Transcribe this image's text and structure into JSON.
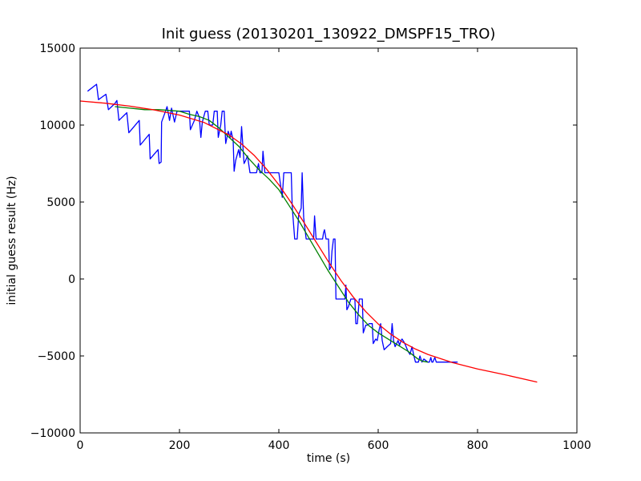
{
  "chart_data": {
    "type": "line",
    "title": "Init guess (20130201_130922_DMSPF15_TRO)",
    "xlabel": "time (s)",
    "ylabel": "initial guess result (Hz)",
    "xlim": [
      0,
      1000
    ],
    "ylim": [
      -10000,
      15000
    ],
    "xticks": [
      0,
      200,
      400,
      600,
      800,
      1000
    ],
    "yticks": [
      -10000,
      -5000,
      0,
      5000,
      10000,
      15000
    ],
    "grid": false,
    "series": [
      {
        "color": "#0000ff",
        "points": [
          [
            15,
            12200
          ],
          [
            33,
            12650
          ],
          [
            37,
            11650
          ],
          [
            52,
            12000
          ],
          [
            57,
            11000
          ],
          [
            70,
            11400
          ],
          [
            74,
            11600
          ],
          [
            78,
            10300
          ],
          [
            94,
            10800
          ],
          [
            98,
            9500
          ],
          [
            119,
            10300
          ],
          [
            121,
            8700
          ],
          [
            139,
            9400
          ],
          [
            141,
            7800
          ],
          [
            157,
            8400
          ],
          [
            159,
            7500
          ],
          [
            163,
            7600
          ],
          [
            164,
            10200
          ],
          [
            172,
            10900
          ],
          [
            175,
            11200
          ],
          [
            180,
            10300
          ],
          [
            184,
            11100
          ],
          [
            190,
            10200
          ],
          [
            195,
            10900
          ],
          [
            220,
            10900
          ],
          [
            222,
            9700
          ],
          [
            230,
            10300
          ],
          [
            235,
            10900
          ],
          [
            240,
            10500
          ],
          [
            243,
            9200
          ],
          [
            246,
            10200
          ],
          [
            252,
            10900
          ],
          [
            257,
            10900
          ],
          [
            260,
            10000
          ],
          [
            267,
            10000
          ],
          [
            270,
            10900
          ],
          [
            276,
            10900
          ],
          [
            278,
            9200
          ],
          [
            283,
            10000
          ],
          [
            286,
            10900
          ],
          [
            290,
            10900
          ],
          [
            293,
            8800
          ],
          [
            298,
            9600
          ],
          [
            302,
            9200
          ],
          [
            304,
            9600
          ],
          [
            308,
            9000
          ],
          [
            310,
            7000
          ],
          [
            313,
            7700
          ],
          [
            319,
            8400
          ],
          [
            322,
            7900
          ],
          [
            325,
            9900
          ],
          [
            330,
            7500
          ],
          [
            333,
            7700
          ],
          [
            337,
            8000
          ],
          [
            342,
            6900
          ],
          [
            355,
            6900
          ],
          [
            359,
            7500
          ],
          [
            362,
            6900
          ],
          [
            366,
            6900
          ],
          [
            368,
            8300
          ],
          [
            372,
            6900
          ],
          [
            392,
            6900
          ],
          [
            398,
            6900
          ],
          [
            400,
            6900
          ],
          [
            407,
            5300
          ],
          [
            410,
            6900
          ],
          [
            425,
            6900
          ],
          [
            427,
            4700
          ],
          [
            432,
            2600
          ],
          [
            437,
            2600
          ],
          [
            440,
            4200
          ],
          [
            445,
            4600
          ],
          [
            447,
            6900
          ],
          [
            450,
            4000
          ],
          [
            455,
            2600
          ],
          [
            470,
            2600
          ],
          [
            472,
            4100
          ],
          [
            475,
            2600
          ],
          [
            488,
            2600
          ],
          [
            490,
            3000
          ],
          [
            492,
            3200
          ],
          [
            495,
            2600
          ],
          [
            500,
            2600
          ],
          [
            502,
            600
          ],
          [
            505,
            800
          ],
          [
            507,
            1800
          ],
          [
            510,
            2600
          ],
          [
            513,
            2600
          ],
          [
            515,
            -1300
          ],
          [
            533,
            -1300
          ],
          [
            535,
            -400
          ],
          [
            537,
            -2000
          ],
          [
            540,
            -1800
          ],
          [
            545,
            -1300
          ],
          [
            553,
            -1300
          ],
          [
            555,
            -2900
          ],
          [
            558,
            -2900
          ],
          [
            562,
            -1300
          ],
          [
            568,
            -1300
          ],
          [
            570,
            -3500
          ],
          [
            575,
            -3000
          ],
          [
            578,
            -3000
          ],
          [
            582,
            -2900
          ],
          [
            588,
            -2900
          ],
          [
            590,
            -4200
          ],
          [
            595,
            -3900
          ],
          [
            598,
            -4000
          ],
          [
            602,
            -3300
          ],
          [
            605,
            -2900
          ],
          [
            608,
            -4000
          ],
          [
            612,
            -4600
          ],
          [
            618,
            -4400
          ],
          [
            625,
            -4200
          ],
          [
            628,
            -2900
          ],
          [
            631,
            -4000
          ],
          [
            634,
            -4400
          ],
          [
            640,
            -4000
          ],
          [
            643,
            -4300
          ],
          [
            646,
            -4000
          ],
          [
            648,
            -3900
          ],
          [
            652,
            -4100
          ],
          [
            655,
            -4300
          ],
          [
            660,
            -4700
          ],
          [
            664,
            -4900
          ],
          [
            668,
            -4400
          ],
          [
            672,
            -5000
          ],
          [
            675,
            -5400
          ],
          [
            681,
            -5400
          ],
          [
            684,
            -5000
          ],
          [
            688,
            -5400
          ],
          [
            692,
            -5200
          ],
          [
            700,
            -5400
          ],
          [
            703,
            -5400
          ],
          [
            706,
            -5100
          ],
          [
            708,
            -5400
          ],
          [
            710,
            -5400
          ],
          [
            714,
            -5100
          ],
          [
            717,
            -5400
          ],
          [
            730,
            -5400
          ],
          [
            740,
            -5400
          ],
          [
            760,
            -5400
          ]
        ]
      },
      {
        "color": "#008000",
        "points": [
          [
            70,
            11200
          ],
          [
            100,
            11100
          ],
          [
            130,
            11000
          ],
          [
            160,
            11000
          ],
          [
            180,
            10950
          ],
          [
            200,
            10900
          ],
          [
            220,
            10700
          ],
          [
            240,
            10550
          ],
          [
            260,
            10300
          ],
          [
            280,
            9800
          ],
          [
            300,
            9200
          ],
          [
            320,
            8600
          ],
          [
            340,
            7800
          ],
          [
            360,
            7100
          ],
          [
            380,
            6500
          ],
          [
            400,
            5800
          ],
          [
            420,
            4800
          ],
          [
            440,
            3800
          ],
          [
            460,
            2700
          ],
          [
            480,
            1600
          ],
          [
            500,
            500
          ],
          [
            520,
            -500
          ],
          [
            540,
            -1500
          ],
          [
            560,
            -2300
          ],
          [
            580,
            -3000
          ],
          [
            600,
            -3500
          ],
          [
            620,
            -3900
          ],
          [
            640,
            -4300
          ],
          [
            660,
            -4700
          ],
          [
            680,
            -5200
          ],
          [
            690,
            -5350
          ],
          [
            700,
            -5400
          ]
        ]
      },
      {
        "color": "#ff0000",
        "points": [
          [
            0,
            11560
          ],
          [
            50,
            11420
          ],
          [
            100,
            11230
          ],
          [
            150,
            10980
          ],
          [
            200,
            10650
          ],
          [
            250,
            10160
          ],
          [
            300,
            9350
          ],
          [
            325,
            8770
          ],
          [
            350,
            8040
          ],
          [
            375,
            7150
          ],
          [
            400,
            6120
          ],
          [
            425,
            4950
          ],
          [
            450,
            3700
          ],
          [
            475,
            2400
          ],
          [
            500,
            1110
          ],
          [
            525,
            -100
          ],
          [
            550,
            -1180
          ],
          [
            575,
            -2120
          ],
          [
            600,
            -2920
          ],
          [
            625,
            -3580
          ],
          [
            650,
            -4120
          ],
          [
            675,
            -4550
          ],
          [
            700,
            -4900
          ],
          [
            750,
            -5440
          ],
          [
            800,
            -5850
          ],
          [
            850,
            -6180
          ],
          [
            920,
            -6700
          ]
        ]
      }
    ]
  }
}
